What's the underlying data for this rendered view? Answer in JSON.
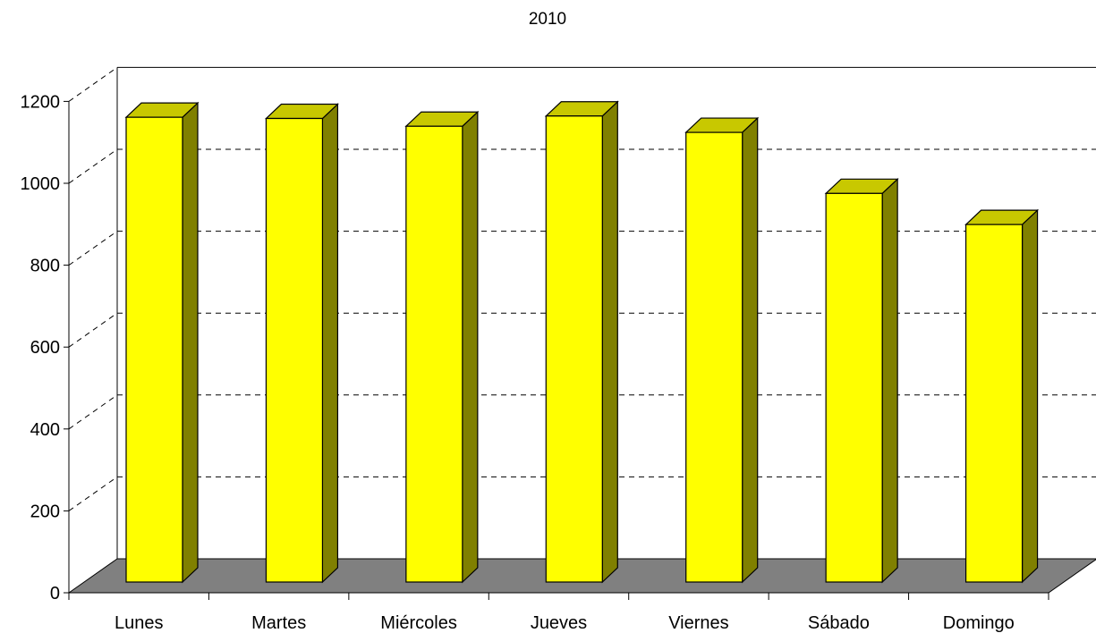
{
  "chart_data": {
    "type": "bar",
    "title": "2010",
    "xlabel": "",
    "ylabel": "",
    "categories": [
      "Lunes",
      "Martes",
      "Miércoles",
      "Jueves",
      "Viernes",
      "Sábado",
      "Domingo"
    ],
    "values": [
      1170,
      1167,
      1148,
      1173,
      1133,
      984,
      908
    ],
    "ylim": [
      0,
      1200
    ],
    "yticks": [
      0,
      200,
      400,
      600,
      800,
      1000,
      1200
    ],
    "grid": true,
    "legend": "none",
    "colors": {
      "bar_front": "#ffff00",
      "bar_top": "#c8c800",
      "bar_side": "#808000",
      "floor": "#808080",
      "outline": "#000000"
    }
  }
}
